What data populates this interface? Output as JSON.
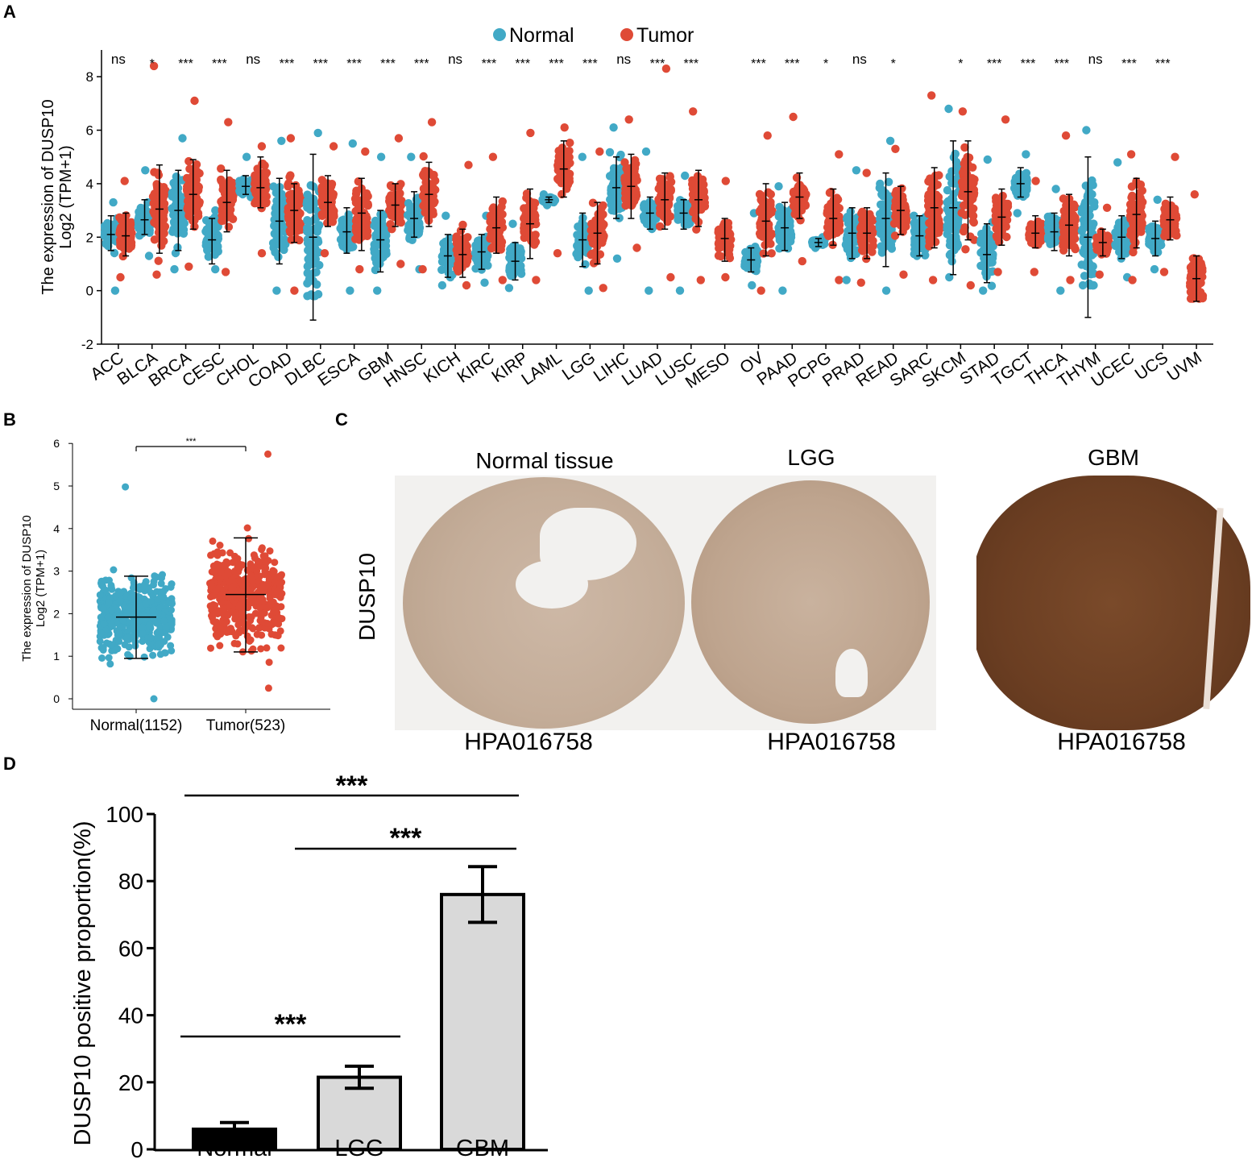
{
  "panels": {
    "a": "A",
    "b": "B",
    "c": "C",
    "d": "D"
  },
  "colors": {
    "normal": "#41a9c6",
    "tumor": "#df4a36",
    "bar_normal": "#000000",
    "bar_other": "#d9d9d9"
  },
  "chart_data": [
    {
      "id": "A",
      "type": "scatter",
      "title": "",
      "legend": [
        {
          "name": "Normal",
          "color": "#41a9c6"
        },
        {
          "name": "Tumor",
          "color": "#df4a36"
        }
      ],
      "legend_position": "top-center",
      "ylabel_line1": "The expression of DUSP10",
      "ylabel_line2": "Log2 (TPM+1)",
      "ylim": [
        -2,
        9
      ],
      "yticks": [
        -2,
        0,
        2,
        4,
        6,
        8
      ],
      "cancers": [
        {
          "name": "ACC",
          "sig": "ns",
          "normal": {
            "mean": 2.1,
            "lo": 1.5,
            "hi": 2.8,
            "min": 0,
            "max": 3.3
          },
          "tumor": {
            "mean": 2.05,
            "lo": 1.3,
            "hi": 2.9,
            "min": 0.5,
            "max": 4.1
          }
        },
        {
          "name": "BLCA",
          "sig": "*",
          "normal": {
            "mean": 2.65,
            "lo": 2.1,
            "hi": 3.4,
            "min": 1.3,
            "max": 4.5
          },
          "tumor": {
            "mean": 3.05,
            "lo": 1.4,
            "hi": 4.7,
            "min": 0.6,
            "max": 8.4
          }
        },
        {
          "name": "BRCA",
          "sig": "***",
          "normal": {
            "mean": 3.0,
            "lo": 1.5,
            "hi": 4.5,
            "min": 0.8,
            "max": 5.7
          },
          "tumor": {
            "mean": 3.6,
            "lo": 2.3,
            "hi": 4.9,
            "min": 0.9,
            "max": 7.1
          }
        },
        {
          "name": "CESC",
          "sig": "***",
          "normal": {
            "mean": 1.9,
            "lo": 1.0,
            "hi": 2.7,
            "min": 0.8,
            "max": 3.0
          },
          "tumor": {
            "mean": 3.3,
            "lo": 2.2,
            "hi": 4.5,
            "min": 0.7,
            "max": 6.3
          }
        },
        {
          "name": "CHOL",
          "sig": "ns",
          "normal": {
            "mean": 3.9,
            "lo": 3.6,
            "hi": 4.3,
            "min": 3.5,
            "max": 5.0
          },
          "tumor": {
            "mean": 3.85,
            "lo": 3.1,
            "hi": 5.0,
            "min": 1.4,
            "max": 5.4
          }
        },
        {
          "name": "COAD",
          "sig": "***",
          "normal": {
            "mean": 2.6,
            "lo": 1.0,
            "hi": 4.2,
            "min": 0,
            "max": 5.6
          },
          "tumor": {
            "mean": 3.0,
            "lo": 1.8,
            "hi": 4.0,
            "min": 0,
            "max": 5.7
          }
        },
        {
          "name": "DLBC",
          "sig": "***",
          "normal": {
            "mean": 2.0,
            "lo": -1.1,
            "hi": 5.1,
            "min": -0.2,
            "max": 5.9
          },
          "tumor": {
            "mean": 3.3,
            "lo": 2.4,
            "hi": 4.3,
            "min": 1.4,
            "max": 5.4
          }
        },
        {
          "name": "ESCA",
          "sig": "***",
          "normal": {
            "mean": 2.2,
            "lo": 1.4,
            "hi": 3.1,
            "min": 0,
            "max": 5.5
          },
          "tumor": {
            "mean": 2.9,
            "lo": 1.5,
            "hi": 4.2,
            "min": 0.8,
            "max": 5.2
          }
        },
        {
          "name": "GBM",
          "sig": "***",
          "normal": {
            "mean": 1.9,
            "lo": 0.7,
            "hi": 3.0,
            "min": 0,
            "max": 5.0
          },
          "tumor": {
            "mean": 3.2,
            "lo": 2.4,
            "hi": 4.0,
            "min": 1.0,
            "max": 5.7
          }
        },
        {
          "name": "HNSC",
          "sig": "***",
          "normal": {
            "mean": 2.7,
            "lo": 2.0,
            "hi": 3.7,
            "min": 0.8,
            "max": 5.0
          },
          "tumor": {
            "mean": 3.6,
            "lo": 2.4,
            "hi": 4.8,
            "min": 0.8,
            "max": 6.3
          }
        },
        {
          "name": "KICH",
          "sig": "ns",
          "normal": {
            "mean": 1.3,
            "lo": 0.5,
            "hi": 2.1,
            "min": 0.2,
            "max": 2.8
          },
          "tumor": {
            "mean": 1.35,
            "lo": 0.5,
            "hi": 2.3,
            "min": 0.2,
            "max": 4.7
          }
        },
        {
          "name": "KIRC",
          "sig": "***",
          "normal": {
            "mean": 1.45,
            "lo": 0.8,
            "hi": 2.1,
            "min": 0.3,
            "max": 2.8
          },
          "tumor": {
            "mean": 2.35,
            "lo": 1.4,
            "hi": 3.5,
            "min": 0.4,
            "max": 5.0
          }
        },
        {
          "name": "KIRP",
          "sig": "***",
          "normal": {
            "mean": 1.1,
            "lo": 0.4,
            "hi": 1.8,
            "min": 0.1,
            "max": 2.5
          },
          "tumor": {
            "mean": 2.5,
            "lo": 1.2,
            "hi": 3.8,
            "min": 0.4,
            "max": 5.9
          }
        },
        {
          "name": "LAML",
          "sig": "***",
          "normal": {
            "mean": 3.4,
            "lo": 3.3,
            "hi": 3.5,
            "min": 3.2,
            "max": 3.6
          },
          "tumor": {
            "mean": 4.55,
            "lo": 3.5,
            "hi": 5.6,
            "min": 1.4,
            "max": 6.1
          }
        },
        {
          "name": "LGG",
          "sig": "***",
          "normal": {
            "mean": 1.9,
            "lo": 0.9,
            "hi": 2.9,
            "min": 0,
            "max": 5.0
          },
          "tumor": {
            "mean": 2.15,
            "lo": 1.0,
            "hi": 3.3,
            "min": 0.1,
            "max": 5.2
          }
        },
        {
          "name": "LIHC",
          "sig": "ns",
          "normal": {
            "mean": 3.85,
            "lo": 2.7,
            "hi": 5.0,
            "min": 1.2,
            "max": 6.1
          },
          "tumor": {
            "mean": 3.9,
            "lo": 2.7,
            "hi": 5.1,
            "min": 1.6,
            "max": 6.4
          }
        },
        {
          "name": "LUAD",
          "sig": "***",
          "normal": {
            "mean": 2.9,
            "lo": 2.3,
            "hi": 3.5,
            "min": 0,
            "max": 5.2
          },
          "tumor": {
            "mean": 3.4,
            "lo": 2.3,
            "hi": 4.4,
            "min": 0.5,
            "max": 8.3
          }
        },
        {
          "name": "LUSC",
          "sig": "***",
          "normal": {
            "mean": 2.9,
            "lo": 2.3,
            "hi": 3.4,
            "min": 0,
            "max": 4.3
          },
          "tumor": {
            "mean": 3.4,
            "lo": 2.4,
            "hi": 4.5,
            "min": 0.4,
            "max": 6.7
          }
        },
        {
          "name": "MESO",
          "sig": "",
          "normal": null,
          "tumor": {
            "mean": 1.95,
            "lo": 1.1,
            "hi": 2.7,
            "min": 0.5,
            "max": 4.1
          }
        },
        {
          "name": "OV",
          "sig": "***",
          "normal": {
            "mean": 1.15,
            "lo": 0.7,
            "hi": 1.6,
            "min": 0.2,
            "max": 2.9
          },
          "tumor": {
            "mean": 2.6,
            "lo": 1.3,
            "hi": 4.0,
            "min": 0,
            "max": 5.8
          }
        },
        {
          "name": "PAAD",
          "sig": "***",
          "normal": {
            "mean": 2.35,
            "lo": 1.5,
            "hi": 3.3,
            "min": 0,
            "max": 3.9
          },
          "tumor": {
            "mean": 3.5,
            "lo": 2.7,
            "hi": 4.4,
            "min": 1.1,
            "max": 6.5
          }
        },
        {
          "name": "PCPG",
          "sig": "*",
          "normal": {
            "mean": 1.8,
            "lo": 1.65,
            "hi": 1.95,
            "min": 1.6,
            "max": 2.0
          },
          "tumor": {
            "mean": 2.7,
            "lo": 1.7,
            "hi": 3.8,
            "min": 0.4,
            "max": 5.1
          }
        },
        {
          "name": "PRAD",
          "sig": "ns",
          "normal": {
            "mean": 2.15,
            "lo": 1.2,
            "hi": 3.1,
            "min": 0.4,
            "max": 4.5
          },
          "tumor": {
            "mean": 2.15,
            "lo": 1.2,
            "hi": 3.1,
            "min": 0.3,
            "max": 4.4
          }
        },
        {
          "name": "READ",
          "sig": "*",
          "normal": {
            "mean": 2.7,
            "lo": 0.9,
            "hi": 4.4,
            "min": 0,
            "max": 5.6
          },
          "tumor": {
            "mean": 3.0,
            "lo": 2.1,
            "hi": 3.9,
            "min": 0.6,
            "max": 5.3
          }
        },
        {
          "name": "SARC",
          "sig": "",
          "normal": {
            "mean": 2.05,
            "lo": 1.3,
            "hi": 2.8,
            "min": 1.3,
            "max": 2.8
          },
          "tumor": {
            "mean": 3.1,
            "lo": 1.6,
            "hi": 4.6,
            "min": 0.4,
            "max": 7.3
          }
        },
        {
          "name": "SKCM",
          "sig": "*",
          "normal": {
            "mean": 3.1,
            "lo": 0.6,
            "hi": 5.6,
            "min": 0.5,
            "max": 6.8
          },
          "tumor": {
            "mean": 3.7,
            "lo": 1.9,
            "hi": 5.6,
            "min": 0.2,
            "max": 6.7
          }
        },
        {
          "name": "STAD",
          "sig": "***",
          "normal": {
            "mean": 1.35,
            "lo": 0.3,
            "hi": 2.5,
            "min": 0,
            "max": 4.9
          },
          "tumor": {
            "mean": 2.75,
            "lo": 1.7,
            "hi": 3.8,
            "min": 0.7,
            "max": 6.4
          }
        },
        {
          "name": "TGCT",
          "sig": "***",
          "normal": {
            "mean": 4.0,
            "lo": 3.5,
            "hi": 4.6,
            "min": 2.9,
            "max": 5.1
          },
          "tumor": {
            "mean": 2.15,
            "lo": 1.6,
            "hi": 2.8,
            "min": 0.7,
            "max": 4.1
          }
        },
        {
          "name": "THCA",
          "sig": "***",
          "normal": {
            "mean": 2.2,
            "lo": 1.5,
            "hi": 2.9,
            "min": 0,
            "max": 3.8
          },
          "tumor": {
            "mean": 2.45,
            "lo": 1.3,
            "hi": 3.6,
            "min": 0.4,
            "max": 5.8
          }
        },
        {
          "name": "THYM",
          "sig": "ns",
          "normal": {
            "mean": 2.0,
            "lo": -1.0,
            "hi": 5.0,
            "min": 0.2,
            "max": 6.0
          },
          "tumor": {
            "mean": 1.8,
            "lo": 1.3,
            "hi": 2.3,
            "min": 0.6,
            "max": 3.1
          }
        },
        {
          "name": "UCEC",
          "sig": "***",
          "normal": {
            "mean": 2.0,
            "lo": 1.2,
            "hi": 2.8,
            "min": 0.5,
            "max": 4.8
          },
          "tumor": {
            "mean": 2.85,
            "lo": 1.6,
            "hi": 4.2,
            "min": 0.4,
            "max": 5.1
          }
        },
        {
          "name": "UCS",
          "sig": "***",
          "normal": {
            "mean": 1.95,
            "lo": 1.3,
            "hi": 2.6,
            "min": 0.8,
            "max": 3.4
          },
          "tumor": {
            "mean": 2.65,
            "lo": 1.9,
            "hi": 3.5,
            "min": 0.7,
            "max": 5.0
          }
        },
        {
          "name": "UVM",
          "sig": "",
          "normal": null,
          "tumor": {
            "mean": 0.45,
            "lo": -0.4,
            "hi": 1.3,
            "min": -0.3,
            "max": 3.6
          }
        }
      ]
    },
    {
      "id": "B",
      "type": "scatter",
      "ylabel_line1": "The expression of DUSP10",
      "ylabel_line2": "Log2 (TPM+1)",
      "ylim": [
        0,
        6
      ],
      "yticks": [
        0,
        1,
        2,
        3,
        4,
        5,
        6
      ],
      "groups": [
        {
          "name": "Normal(1152)",
          "mean": 1.92,
          "lo": 0.95,
          "hi": 2.88,
          "min": 0,
          "max": 4.98,
          "color": "#41a9c6"
        },
        {
          "name": "Tumor(523)",
          "mean": 2.45,
          "lo": 1.1,
          "hi": 3.78,
          "min": 0.25,
          "max": 5.75,
          "color": "#df4a36"
        }
      ],
      "significance": "***"
    },
    {
      "id": "D",
      "type": "bar",
      "ylabel": "DUSP10 positive proportion(%)",
      "ylim": [
        0,
        100
      ],
      "yticks": [
        0,
        20,
        40,
        60,
        80,
        100
      ],
      "categories": [
        "Normal",
        "LGG",
        "GBM"
      ],
      "values": [
        6,
        21.5,
        76
      ],
      "errors": [
        2,
        3.3,
        8.3
      ],
      "comparisons": [
        {
          "from": 0,
          "to": 1,
          "label": "***"
        },
        {
          "from": 1,
          "to": 2,
          "label": "***"
        },
        {
          "from": 0,
          "to": 2,
          "label": "***"
        }
      ]
    }
  ],
  "panel_c": {
    "row_label": "DUSP10",
    "images": [
      {
        "title": "Normal tissue",
        "code": "HPA016758"
      },
      {
        "title": "LGG",
        "code": "HPA016758"
      },
      {
        "title": "GBM",
        "code": "HPA016758"
      }
    ]
  }
}
